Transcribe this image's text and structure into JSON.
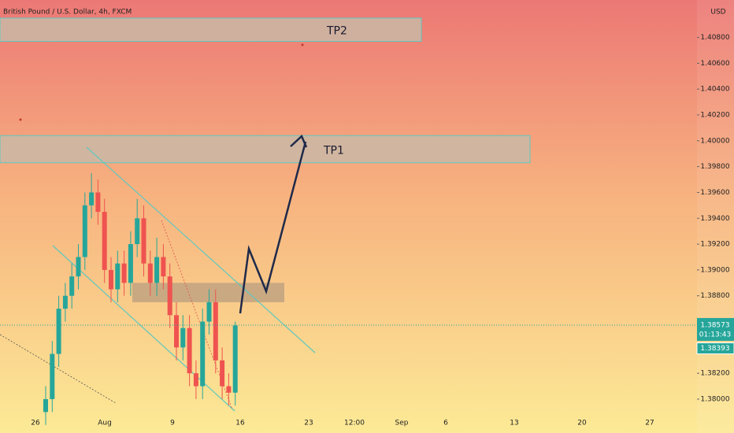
{
  "chart_data": {
    "type": "candlestick",
    "title": "British Pound / U.S. Dollar, 4h, FXCM",
    "currency": "USD",
    "up_color": "#26a69a",
    "down_color": "#ef5350",
    "open": [
      1.379,
      1.38,
      1.3835,
      1.387,
      1.388,
      1.3895,
      1.391,
      1.395,
      1.396,
      1.3945,
      1.39,
      1.3885,
      1.3905,
      1.389,
      1.392,
      1.394,
      1.3905,
      1.389,
      1.391,
      1.3895,
      1.3865,
      1.384,
      1.3855,
      1.382,
      1.381,
      1.386,
      1.3875,
      1.383,
      1.381,
      1.3805
    ],
    "high": [
      1.381,
      1.3845,
      1.388,
      1.389,
      1.3905,
      1.392,
      1.396,
      1.3975,
      1.397,
      1.3955,
      1.391,
      1.3915,
      1.3915,
      1.393,
      1.3955,
      1.395,
      1.3915,
      1.3925,
      1.392,
      1.3905,
      1.3875,
      1.3865,
      1.3865,
      1.383,
      1.387,
      1.3885,
      1.3885,
      1.384,
      1.382,
      1.386
    ],
    "low": [
      1.378,
      1.379,
      1.3825,
      1.386,
      1.387,
      1.3885,
      1.39,
      1.394,
      1.3935,
      1.389,
      1.3875,
      1.3875,
      1.388,
      1.388,
      1.391,
      1.3895,
      1.388,
      1.388,
      1.3885,
      1.3855,
      1.383,
      1.383,
      1.381,
      1.38,
      1.38,
      1.385,
      1.382,
      1.38,
      1.3795,
      1.3795
    ],
    "close": [
      1.38,
      1.3835,
      1.387,
      1.388,
      1.3895,
      1.391,
      1.395,
      1.396,
      1.3945,
      1.39,
      1.3885,
      1.3905,
      1.389,
      1.392,
      1.394,
      1.3905,
      1.389,
      1.391,
      1.3895,
      1.3865,
      1.384,
      1.3855,
      1.382,
      1.381,
      1.386,
      1.3875,
      1.383,
      1.381,
      1.3805,
      1.3857
    ],
    "ylim": [
      1.3789,
      1.4109
    ],
    "yticks": [
      {
        "value": 1.38,
        "label": "1.38000"
      },
      {
        "value": 1.382,
        "label": "1.38200"
      },
      {
        "value": 1.384,
        "label": "1.38400"
      },
      {
        "value": 1.386,
        "label": "1.38600"
      },
      {
        "value": 1.388,
        "label": "1.38800"
      },
      {
        "value": 1.39,
        "label": "1.39000"
      },
      {
        "value": 1.392,
        "label": "1.39200"
      },
      {
        "value": 1.394,
        "label": "1.39400"
      },
      {
        "value": 1.396,
        "label": "1.39600"
      },
      {
        "value": 1.398,
        "label": "1.39800"
      },
      {
        "value": 1.4,
        "label": "1.40000"
      },
      {
        "value": 1.402,
        "label": "1.40200"
      },
      {
        "value": 1.404,
        "label": "1.40400"
      },
      {
        "value": 1.406,
        "label": "1.40600"
      },
      {
        "value": 1.408,
        "label": "1.40800"
      }
    ],
    "x_labels": [
      "26",
      "Aug",
      "9",
      "16",
      "23",
      "12:00",
      "Sep",
      "6",
      "13",
      "20",
      "27"
    ],
    "zones": [
      {
        "label": "TP2",
        "top": 1.4095,
        "bottom": 1.4077
      },
      {
        "label": "TP1",
        "top": 1.4004,
        "bottom": 1.3983
      },
      {
        "top": 1.389,
        "bottom": 1.3875
      }
    ],
    "last_price": {
      "value": 1.38573,
      "label": "1.38573"
    },
    "countdown": "01:13:43",
    "bid_price": {
      "value": 1.38393,
      "label": "1.38393"
    }
  }
}
